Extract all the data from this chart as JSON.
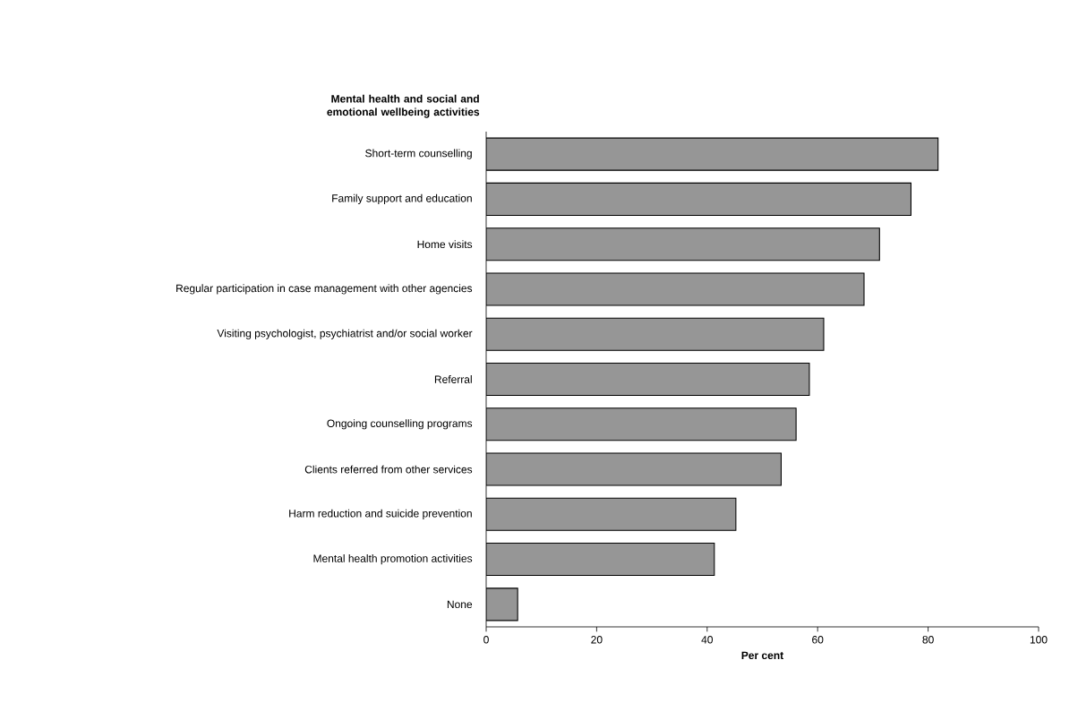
{
  "chart_data": {
    "type": "bar",
    "orientation": "horizontal",
    "ylabel": "Mental health and social and emotional wellbeing activities",
    "xlabel": "Per cent",
    "categories": [
      "Short-term counselling",
      "Family support and education",
      "Home visits",
      "Regular participation in case management with other agencies",
      "Visiting psychologist, psychiatrist and/or social worker",
      "Referral",
      "Ongoing counselling programs",
      "Clients referred from other services",
      "Harm reduction and suicide prevention",
      "Mental health promotion activities",
      "None"
    ],
    "values": [
      81.8,
      76.9,
      71.2,
      68.4,
      61.1,
      58.5,
      56.1,
      53.4,
      45.2,
      41.3,
      5.7
    ],
    "color": "#969696",
    "xlim": [
      0,
      100
    ],
    "xticks": [
      0,
      20,
      40,
      60,
      80,
      100
    ]
  }
}
